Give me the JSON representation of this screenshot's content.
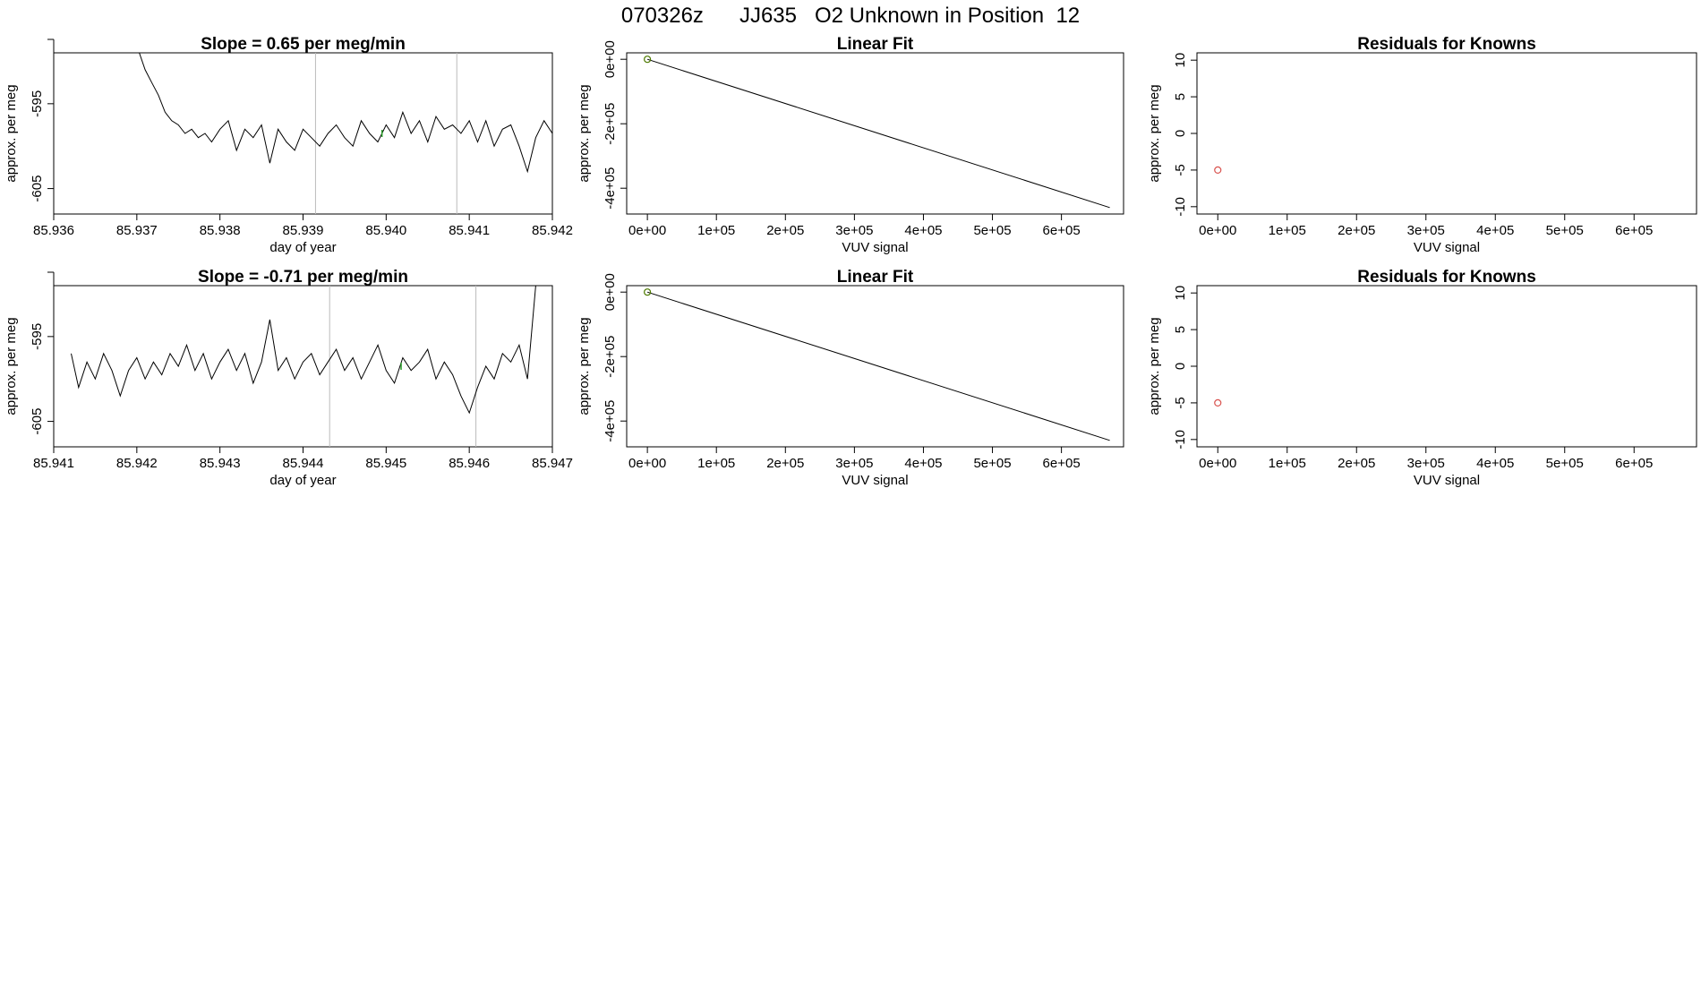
{
  "figure_title": "070326z      JJ635   O2 Unknown in Position  12",
  "colors": {
    "line": "#000000",
    "vline": "#bbbbbb",
    "green_point": "#2ca02c",
    "known_fit_point": "#4d7a00",
    "residual_point": "#d9534f"
  },
  "chart_data": [
    {
      "id": "slope-top",
      "type": "line",
      "title": "Slope =  0.65  per meg/min",
      "xlabel": "day of year",
      "ylabel": "approx. per meg",
      "xlim": [
        85.936,
        85.942
      ],
      "ylim": [
        -608,
        -589
      ],
      "xticks": [
        85.936,
        85.937,
        85.938,
        85.939,
        85.94,
        85.941,
        85.942
      ],
      "xtick_labels": [
        "85.936",
        "85.937",
        "85.938",
        "85.939",
        "85.940",
        "85.941",
        "85.942"
      ],
      "yticks": [
        -605,
        -595
      ],
      "ytick_labels": [
        "-605",
        "-595"
      ],
      "vlines": [
        85.93915,
        85.94085
      ],
      "highlight": {
        "x": 85.93995,
        "y": -598.5
      },
      "series": [
        {
          "x": [
            85.93703,
            85.9371,
            85.93718,
            85.93726,
            85.93734,
            85.93742,
            85.9375,
            85.93758,
            85.93766,
            85.93774,
            85.93782,
            85.9379,
            85.938,
            85.9381,
            85.9382,
            85.9383,
            85.9384,
            85.9385,
            85.9386,
            85.9387,
            85.9388,
            85.9389,
            85.939,
            85.9391,
            85.9392,
            85.9393,
            85.9394,
            85.9395,
            85.9396,
            85.9397,
            85.9398,
            85.9399,
            85.94,
            85.9401,
            85.9402,
            85.9403,
            85.9404,
            85.9405,
            85.9406,
            85.9407,
            85.9408,
            85.9409,
            85.941,
            85.9411,
            85.9412,
            85.9413,
            85.9414,
            85.9415,
            85.9416,
            85.9417,
            85.9418,
            85.9419,
            85.942
          ],
          "y": [
            -589,
            -591,
            -592.5,
            -594,
            -596,
            -597,
            -597.5,
            -598.5,
            -598,
            -599,
            -598.5,
            -599.5,
            -598,
            -597,
            -600.5,
            -598,
            -599,
            -597.5,
            -602,
            -598,
            -599.5,
            -600.5,
            -598,
            -599,
            -600,
            -598.5,
            -597.5,
            -599,
            -600,
            -597,
            -598.5,
            -599.5,
            -597.5,
            -599,
            -596,
            -598.5,
            -597,
            -599.5,
            -596.5,
            -598,
            -597.5,
            -598.5,
            -597,
            -599.5,
            -597,
            -600,
            -598,
            -597.5,
            -600,
            -603,
            -599,
            -597,
            -598.5
          ]
        }
      ]
    },
    {
      "id": "fit-top",
      "type": "line",
      "title": "Linear Fit",
      "xlabel": "VUV signal",
      "ylabel": "approx. per meg",
      "xlim": [
        -30000,
        690000
      ],
      "ylim": [
        -480000,
        20000
      ],
      "xticks": [
        0,
        100000,
        200000,
        300000,
        400000,
        500000,
        600000
      ],
      "xtick_labels": [
        "0e+00",
        "1e+05",
        "2e+05",
        "3e+05",
        "4e+05",
        "5e+05",
        "6e+05"
      ],
      "yticks": [
        -400000,
        -200000,
        0
      ],
      "ytick_labels": [
        "-4e+05",
        "-2e+05",
        "0e+00"
      ],
      "fit_line": {
        "x": [
          0,
          670000
        ],
        "y": [
          0,
          -460000
        ]
      },
      "points": [
        {
          "x": 0,
          "y": 0
        }
      ]
    },
    {
      "id": "resid-top",
      "type": "scatter",
      "title": "Residuals for Knowns",
      "xlabel": "VUV signal",
      "ylabel": "approx. per meg",
      "xlim": [
        -30000,
        690000
      ],
      "ylim": [
        -11,
        11
      ],
      "xticks": [
        0,
        100000,
        200000,
        300000,
        400000,
        500000,
        600000
      ],
      "xtick_labels": [
        "0e+00",
        "1e+05",
        "2e+05",
        "3e+05",
        "4e+05",
        "5e+05",
        "6e+05"
      ],
      "yticks": [
        -10,
        -5,
        0,
        5,
        10
      ],
      "ytick_labels": [
        "-10",
        "-5",
        "0",
        "5",
        "10"
      ],
      "points": [
        {
          "x": 0,
          "y": -5
        }
      ]
    },
    {
      "id": "slope-bottom",
      "type": "line",
      "title": "Slope =  -0.71  per meg/min",
      "xlabel": "day of year",
      "ylabel": "approx. per meg",
      "xlim": [
        85.941,
        85.947
      ],
      "ylim": [
        -608,
        -589
      ],
      "xticks": [
        85.941,
        85.942,
        85.943,
        85.944,
        85.945,
        85.946,
        85.947
      ],
      "xtick_labels": [
        "85.941",
        "85.942",
        "85.943",
        "85.944",
        "85.945",
        "85.946",
        "85.947"
      ],
      "yticks": [
        -605,
        -595
      ],
      "ytick_labels": [
        "-605",
        "-595"
      ],
      "vlines": [
        85.94432,
        85.94608
      ],
      "highlight": {
        "x": 85.94518,
        "y": -598.5
      },
      "series": [
        {
          "x": [
            85.94121,
            85.9413,
            85.9414,
            85.9415,
            85.9416,
            85.9417,
            85.9418,
            85.9419,
            85.942,
            85.9421,
            85.9422,
            85.9423,
            85.9424,
            85.9425,
            85.9426,
            85.9427,
            85.9428,
            85.9429,
            85.943,
            85.9431,
            85.9432,
            85.9433,
            85.9434,
            85.9435,
            85.9436,
            85.9437,
            85.9438,
            85.9439,
            85.944,
            85.9441,
            85.9442,
            85.9443,
            85.9444,
            85.9445,
            85.9446,
            85.9447,
            85.9448,
            85.9449,
            85.945,
            85.9451,
            85.9452,
            85.9453,
            85.9454,
            85.9455,
            85.9456,
            85.9457,
            85.9458,
            85.9459,
            85.946,
            85.9461,
            85.9462,
            85.9463,
            85.9464,
            85.9465,
            85.9466,
            85.9467,
            85.9468
          ],
          "y": [
            -597,
            -601,
            -598,
            -600,
            -597,
            -599,
            -602,
            -599,
            -597.5,
            -600,
            -598,
            -599.5,
            -597,
            -598.5,
            -596,
            -599,
            -597,
            -600,
            -598,
            -596.5,
            -599,
            -597,
            -600.5,
            -598,
            -593,
            -599,
            -597.5,
            -600,
            -598,
            -597,
            -599.5,
            -598,
            -596.5,
            -599,
            -597.5,
            -600,
            -598,
            -596,
            -599,
            -600.5,
            -597.5,
            -599,
            -598,
            -596.5,
            -600,
            -598,
            -599.5,
            -602,
            -604,
            -601,
            -598.5,
            -600,
            -597,
            -598,
            -596,
            -600,
            -589
          ]
        }
      ]
    },
    {
      "id": "fit-bottom",
      "type": "line",
      "title": "Linear Fit",
      "xlabel": "VUV signal",
      "ylabel": "approx. per meg",
      "xlim": [
        -30000,
        690000
      ],
      "ylim": [
        -480000,
        20000
      ],
      "xticks": [
        0,
        100000,
        200000,
        300000,
        400000,
        500000,
        600000
      ],
      "xtick_labels": [
        "0e+00",
        "1e+05",
        "2e+05",
        "3e+05",
        "4e+05",
        "5e+05",
        "6e+05"
      ],
      "yticks": [
        -400000,
        -200000,
        0
      ],
      "ytick_labels": [
        "-4e+05",
        "-2e+05",
        "0e+00"
      ],
      "fit_line": {
        "x": [
          0,
          670000
        ],
        "y": [
          0,
          -460000
        ]
      },
      "points": [
        {
          "x": 0,
          "y": 0
        }
      ]
    },
    {
      "id": "resid-bottom",
      "type": "scatter",
      "title": "Residuals for Knowns",
      "xlabel": "VUV signal",
      "ylabel": "approx. per meg",
      "xlim": [
        -30000,
        690000
      ],
      "ylim": [
        -11,
        11
      ],
      "xticks": [
        0,
        100000,
        200000,
        300000,
        400000,
        500000,
        600000
      ],
      "xtick_labels": [
        "0e+00",
        "1e+05",
        "2e+05",
        "3e+05",
        "4e+05",
        "5e+05",
        "6e+05"
      ],
      "yticks": [
        -10,
        -5,
        0,
        5,
        10
      ],
      "ytick_labels": [
        "-10",
        "-5",
        "0",
        "5",
        "10"
      ],
      "points": [
        {
          "x": 0,
          "y": -5
        }
      ]
    }
  ]
}
